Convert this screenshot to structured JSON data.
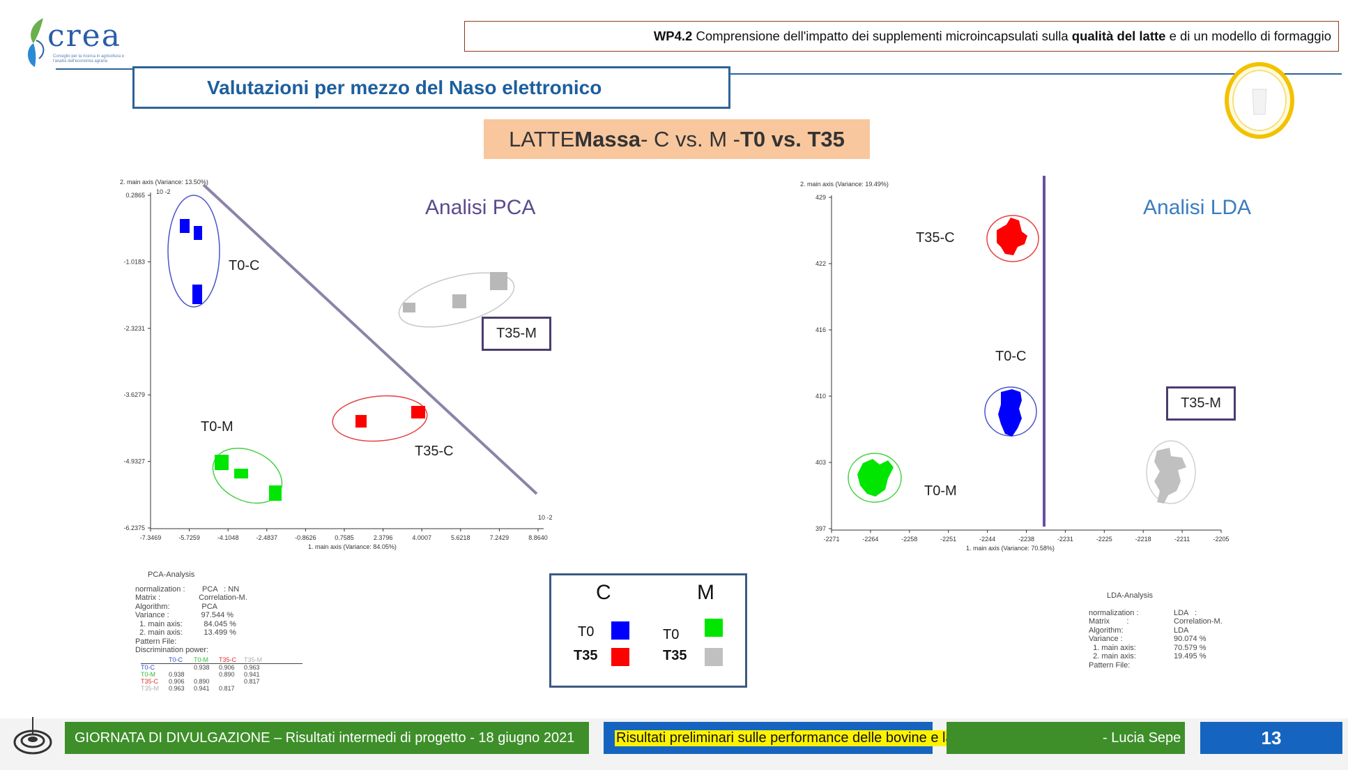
{
  "logo": {
    "text": "crea",
    "subtitle": "Consiglio per la ricerca in agricoltura e l'analisi dell'economia agraria"
  },
  "header": {
    "wp_prefix": "WP4.2",
    "wp_text_1": " Comprensione dell'impatto dei supplementi microincapsulati sulla ",
    "wp_bold": "qualità del latte",
    "wp_text_2": " e di un modello di formaggio"
  },
  "section_title": "Valutazioni per mezzo del Naso elettronico",
  "mass": {
    "p1": "LATTE ",
    "b1": "Massa",
    "p2": " -  C vs. M - ",
    "b2": "T0 vs. T35"
  },
  "pca": {
    "title": "Analisi PCA",
    "y_axis_label": "2. main axis (Variance: 13.50%)",
    "x_axis_label": "1. main axis (Variance: 84.05%)",
    "exp_y": "10 -2",
    "exp_x": "10 -2",
    "y_ticks": [
      "0.2865",
      "-1.0183",
      "-2.3231",
      "-3.6279",
      "-4.9327",
      "-6.2375"
    ],
    "x_ticks": [
      "-7.3469",
      "-5.7259",
      "-4.1048",
      "-2.4837",
      "-0.8626",
      "0.7585",
      "2.3796",
      "4.0007",
      "5.6218",
      "7.2429",
      "8.8640"
    ],
    "labels": {
      "t0c": "T0-C",
      "t0m": "T0-M",
      "t35c": "T35-C",
      "t35m": "T35-M"
    }
  },
  "lda": {
    "title": "Analisi LDA",
    "y_axis_label": "2. main axis (Variance: 19.49%)",
    "x_axis_label": "1. main axis (Variance: 70.58%)",
    "y_ticks": [
      "429",
      "422",
      "416",
      "410",
      "403",
      "397"
    ],
    "x_ticks": [
      "-2271",
      "-2264",
      "-2258",
      "-2251",
      "-2244",
      "-2238",
      "-2231",
      "-2225",
      "-2218",
      "-2211",
      "-2205"
    ],
    "labels": {
      "t35c": "T35-C",
      "t0c": "T0-C",
      "t35m": "T35-M",
      "t0m": "T0-M"
    }
  },
  "legend": {
    "col_c": "C",
    "col_m": "M",
    "t0": "T0",
    "t35": "T35",
    "colors": {
      "t0c": "#0000ff",
      "t35c": "#ff0000",
      "t0m": "#00e600",
      "t35m": "#c0c0c0"
    }
  },
  "pca_info": {
    "title": "PCA-Analysis",
    "text": "normalization :        PCA   : NN\nMatrix :                  Correlation-M.\nAlgorithm:               PCA\nVariance :               97.544 %\n  1. main axis:          84.045 %\n  2. main axis:          13.499 %\nPattern File:\nDiscrimination power:",
    "disc_header": [
      "T0-C",
      "T0-M",
      "T35-C",
      "T35-M"
    ],
    "disc_rows": [
      [
        "T0-C",
        "",
        "0.938",
        "0.906",
        "0.963"
      ],
      [
        "T0-M",
        "0.938",
        "",
        "0.890",
        "0.941"
      ],
      [
        "T35-C",
        "0.906",
        "0.890",
        "",
        "0.817"
      ],
      [
        "T35-M",
        "0.963",
        "0.941",
        "0.817",
        ""
      ]
    ]
  },
  "lda_info": {
    "title": "LDA-Analysis",
    "keys": "normalization :\nMatrix        :\nAlgorithm:\nVariance :\n  1. main axis:\n  2. main axis:\nPattern File:",
    "vals": "LDA   :\nCorrelation-M.\nLDA\n90.074 %\n70.579 %\n19.495 %"
  },
  "footer": {
    "event": "GIORNATA DI DIVULGAZIONE – Risultati intermedi di progetto  - 18 giugno 2021",
    "results_highlight": "Risultati preliminari sulle performance delle bovine e la qualità del latte",
    "author": " - Lucia Sepe",
    "page": "13"
  }
}
